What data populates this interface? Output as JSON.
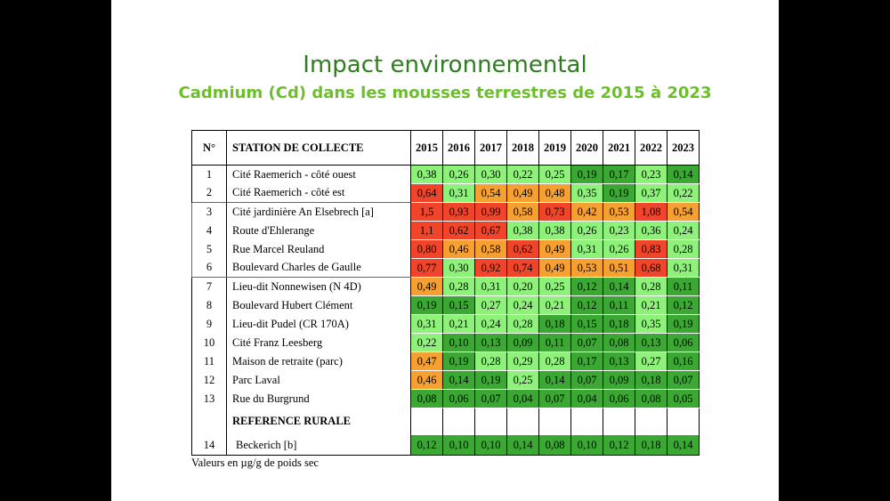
{
  "title": "Impact environnemental",
  "subtitle": "Cadmium (Cd) dans les mousses terrestres de 2015 à 2023",
  "table": {
    "header_no": "N°",
    "header_station": "STATION DE COLLECTE",
    "years": [
      "2015",
      "2016",
      "2017",
      "2018",
      "2019",
      "2020",
      "2021",
      "2022",
      "2023"
    ],
    "rows": [
      {
        "no": "1",
        "station": "Cité Raemerich - côté ouest",
        "values": [
          "0,38",
          "0,26",
          "0,30",
          "0,22",
          "0,25",
          "0,19",
          "0,17",
          "0,23",
          "0,14"
        ],
        "levels": [
          "l",
          "l",
          "l",
          "l",
          "l",
          "g",
          "g",
          "l",
          "g"
        ]
      },
      {
        "no": "2",
        "station": "Cité Raemerich - côté est",
        "values": [
          "0,64",
          "0,31",
          "0,54",
          "0,49",
          "0,48",
          "0,35",
          "0,19",
          "0,37",
          "0,22"
        ],
        "levels": [
          "r",
          "l",
          "o",
          "o",
          "o",
          "l",
          "g",
          "l",
          "l"
        ]
      },
      {
        "no": "3",
        "station": "Cité jardinière An Elsebrech [a]",
        "values": [
          "1,5",
          "0,93",
          "0,99",
          "0,58",
          "0,73",
          "0,42",
          "0,53",
          "1,08",
          "0,54"
        ],
        "levels": [
          "r",
          "r",
          "r",
          "o",
          "r",
          "o",
          "o",
          "r",
          "o"
        ]
      },
      {
        "no": "4",
        "station": "Route d'Ehlerange",
        "values": [
          "1,1",
          "0,62",
          "0,67",
          "0,38",
          "0,38",
          "0,26",
          "0,23",
          "0,36",
          "0,24"
        ],
        "levels": [
          "r",
          "r",
          "r",
          "l",
          "l",
          "l",
          "l",
          "l",
          "l"
        ]
      },
      {
        "no": "5",
        "station": "Rue Marcel Reuland",
        "values": [
          "0,80",
          "0,46",
          "0,58",
          "0,62",
          "0,49",
          "0,31",
          "0,26",
          "0,83",
          "0,28"
        ],
        "levels": [
          "r",
          "o",
          "o",
          "r",
          "o",
          "l",
          "l",
          "r",
          "l"
        ]
      },
      {
        "no": "6",
        "station": "Boulevard Charles de Gaulle",
        "values": [
          "0,77",
          "0,30",
          "0,92",
          "0,74",
          "0,49",
          "0,53",
          "0,51",
          "0,68",
          "0,31"
        ],
        "levels": [
          "r",
          "l",
          "r",
          "r",
          "o",
          "o",
          "o",
          "r",
          "l"
        ]
      },
      {
        "no": "7",
        "station": "Lieu-dit Nonnewisen (N 4D)",
        "values": [
          "0,49",
          "0,28",
          "0,31",
          "0,20",
          "0,25",
          "0,12",
          "0,14",
          "0,28",
          "0,11"
        ],
        "levels": [
          "o",
          "l",
          "l",
          "l",
          "l",
          "g",
          "g",
          "l",
          "g"
        ]
      },
      {
        "no": "8",
        "station": "Boulevard Hubert Clément",
        "values": [
          "0,19",
          "0,15",
          "0,27",
          "0,24",
          "0,21",
          "0,12",
          "0,11",
          "0,21",
          "0,12"
        ],
        "levels": [
          "g",
          "g",
          "l",
          "l",
          "l",
          "g",
          "g",
          "l",
          "g"
        ]
      },
      {
        "no": "9",
        "station": "Lieu-dit Pudel (CR 170A)",
        "values": [
          "0,31",
          "0,21",
          "0,24",
          "0,28",
          "0,18",
          "0,15",
          "0,18",
          "0,35",
          "0,19"
        ],
        "levels": [
          "l",
          "l",
          "l",
          "l",
          "g",
          "g",
          "g",
          "l",
          "g"
        ]
      },
      {
        "no": "10",
        "station": "Cité Franz Leesberg",
        "values": [
          "0,22",
          "0,10",
          "0,13",
          "0,09",
          "0,11",
          "0,07",
          "0,08",
          "0,13",
          "0,06"
        ],
        "levels": [
          "l",
          "g",
          "g",
          "g",
          "g",
          "g",
          "g",
          "g",
          "g"
        ]
      },
      {
        "no": "11",
        "station": "Maison de retraite (parc)",
        "values": [
          "0,47",
          "0,19",
          "0,28",
          "0,29",
          "0,28",
          "0,17",
          "0,13",
          "0,27",
          "0,16"
        ],
        "levels": [
          "o",
          "g",
          "l",
          "l",
          "l",
          "g",
          "g",
          "l",
          "g"
        ]
      },
      {
        "no": "12",
        "station": "Parc Laval",
        "values": [
          "0,46",
          "0,14",
          "0,19",
          "0,25",
          "0,14",
          "0,07",
          "0,09",
          "0,18",
          "0,07"
        ],
        "levels": [
          "o",
          "g",
          "g",
          "l",
          "g",
          "g",
          "g",
          "g",
          "g"
        ]
      },
      {
        "no": "13",
        "station": "Rue du Burgrund",
        "values": [
          "0,08",
          "0,06",
          "0,07",
          "0,04",
          "0,07",
          "0,04",
          "0,06",
          "0,08",
          "0,05"
        ],
        "levels": [
          "g",
          "g",
          "g",
          "g",
          "g",
          "g",
          "g",
          "g",
          "g"
        ]
      }
    ],
    "reference_label": "REFERENCE RURALE",
    "reference_row": {
      "no": "14",
      "station": "Beckerich [b]",
      "values": [
        "0,12",
        "0,10",
        "0,10",
        "0,14",
        "0,08",
        "0,10",
        "0,12",
        "0,18",
        "0,14"
      ],
      "levels": [
        "g",
        "g",
        "g",
        "g",
        "g",
        "g",
        "g",
        "g",
        "g"
      ]
    }
  },
  "footnote": "Valeurs en µg/g de poids sec",
  "colors": {
    "r": "#f0452a",
    "o": "#f5a030",
    "l": "#8ef27a",
    "g": "#3aa832",
    "title": "#2e7d1e",
    "subtitle": "#6cbf2a",
    "group_border": "#dd3333"
  }
}
